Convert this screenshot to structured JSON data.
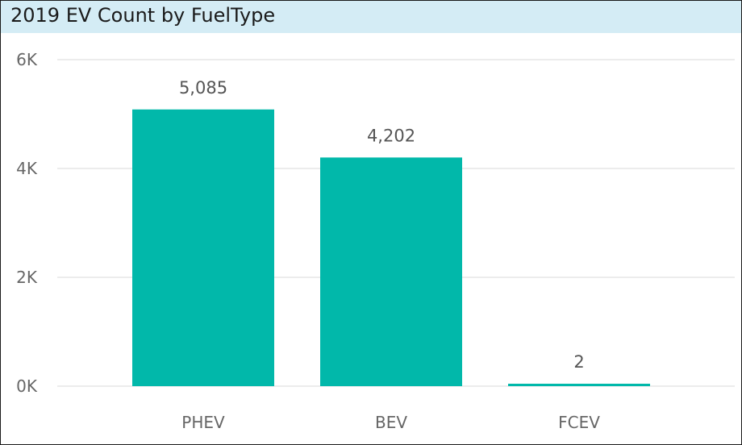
{
  "chart_data": {
    "type": "bar",
    "title": "2019 EV Count by FuelType",
    "categories": [
      "PHEV",
      "BEV",
      "FCEV"
    ],
    "values": [
      5085,
      4202,
      2
    ],
    "data_labels": [
      "5,085",
      "4,202",
      "2"
    ],
    "xlabel": "",
    "ylabel": "",
    "ylim": [
      0,
      6000
    ],
    "yticks": [
      0,
      2000,
      4000,
      6000
    ],
    "ytick_labels": [
      "0K",
      "2K",
      "4K",
      "6K"
    ],
    "grid": true,
    "legend": "none",
    "colors": {
      "bar": "#01b8aa",
      "title_background": "#d4ecf5"
    }
  }
}
